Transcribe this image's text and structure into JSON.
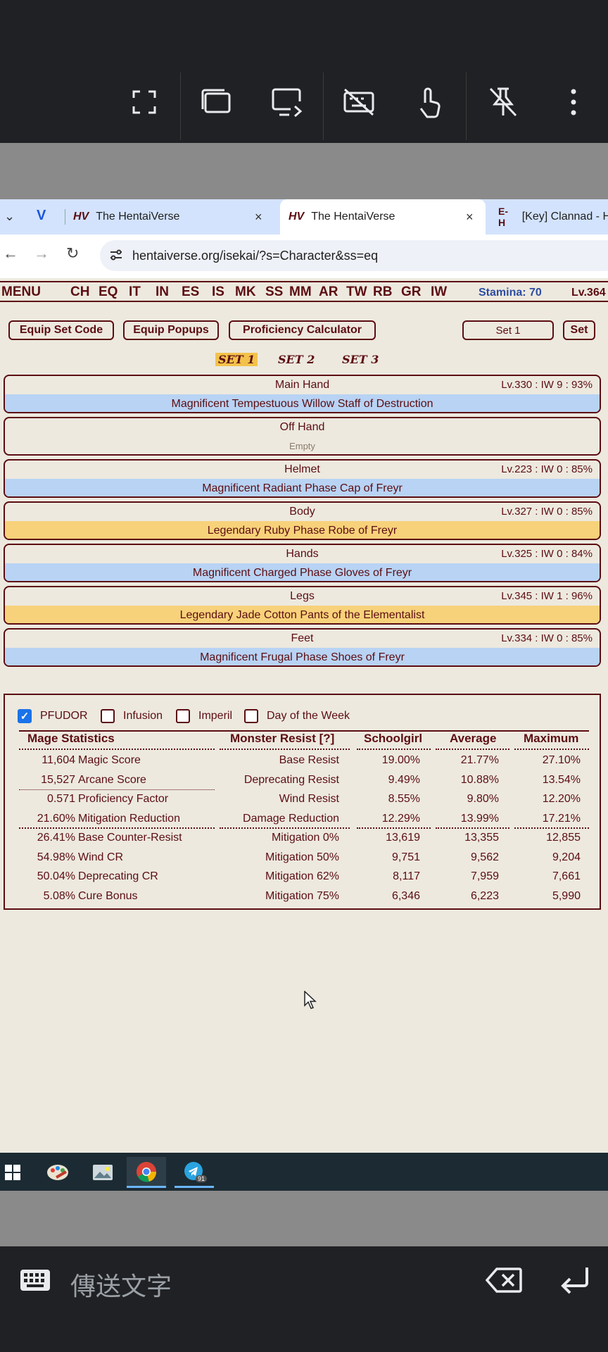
{
  "remote_toolbar": {
    "icons": [
      "fullscreen-icon",
      "window-icon",
      "display-switch-icon",
      "keyboard-off-icon",
      "touch-icon",
      "unpin-icon",
      "more-icon"
    ]
  },
  "browser": {
    "tabs": [
      {
        "title": "The HentaiVerse"
      },
      {
        "title": "The HentaiVerse"
      },
      {
        "title": "[Key] Clannad - H"
      }
    ],
    "tab_favicon_left": "HV",
    "tab_favicon_eh": "E-H",
    "url": "hentaiverse.org/isekai/?s=Character&ss=eq",
    "close_glyph": "×"
  },
  "hv": {
    "menu": [
      "MENU",
      "CH",
      "EQ",
      "IT",
      "IN",
      "ES",
      "IS",
      "MK",
      "SS",
      "MM",
      "AR",
      "TW",
      "RB",
      "GR",
      "IW"
    ],
    "stamina": "Stamina: 70",
    "level": "Lv.364",
    "buttons": {
      "equip_set_code": "Equip Set Code",
      "equip_popups": "Equip Popups",
      "proficiency_calculator": "Proficiency Calculator",
      "set_value": "Set 1",
      "set": "Set"
    },
    "set_tabs": [
      "SET 1",
      "SET 2",
      "SET 3"
    ],
    "slots": [
      {
        "name": "Main Hand",
        "info": "Lv.330  :  IW 9  :  93%",
        "item": "Magnificent Tempestuous Willow Staff of Destruction",
        "tier": "blue"
      },
      {
        "name": "Off Hand",
        "info": "",
        "item": "Empty",
        "tier": "empty"
      },
      {
        "name": "Helmet",
        "info": "Lv.223  :  IW 0  :  85%",
        "item": "Magnificent Radiant Phase Cap of Freyr",
        "tier": "blue"
      },
      {
        "name": "Body",
        "info": "Lv.327  :  IW 0  :  85%",
        "item": "Legendary Ruby Phase Robe of Freyr",
        "tier": "gold"
      },
      {
        "name": "Hands",
        "info": "Lv.325  :  IW 0  :  84%",
        "item": "Magnificent Charged Phase Gloves of Freyr",
        "tier": "blue"
      },
      {
        "name": "Legs",
        "info": "Lv.345  :  IW 1  :  96%",
        "item": "Legendary Jade Cotton Pants of the Elementalist",
        "tier": "gold"
      },
      {
        "name": "Feet",
        "info": "Lv.334  :  IW 0  :  85%",
        "item": "Magnificent Frugal Phase Shoes of Freyr",
        "tier": "blue"
      }
    ],
    "checkboxes": [
      {
        "label": "PFUDOR",
        "checked": true
      },
      {
        "label": "Infusion",
        "checked": false
      },
      {
        "label": "Imperil",
        "checked": false
      },
      {
        "label": "Day of the Week",
        "checked": false
      }
    ],
    "stats_headers": [
      "Mage Statistics",
      "Monster Resist [?]",
      "Schoolgirl",
      "Average",
      "Maximum"
    ],
    "stats_rows": [
      {
        "val": "11,604",
        "label": "Magic Score",
        "res": "Base Resist",
        "s": "19.00%",
        "a": "21.77%",
        "m": "27.10%"
      },
      {
        "val": "15,527",
        "label": "Arcane Score",
        "res": "Deprecating Resist",
        "s": "9.49%",
        "a": "10.88%",
        "m": "13.54%"
      },
      {
        "val": "0.571",
        "label": "Proficiency Factor",
        "res": "Wind Resist",
        "s": "8.55%",
        "a": "9.80%",
        "m": "12.20%"
      },
      {
        "val": "21.60%",
        "label": "Mitigation Reduction",
        "res": "Damage Reduction",
        "s": "12.29%",
        "a": "13.99%",
        "m": "17.21%"
      },
      {
        "val": "26.41%",
        "label": "Base Counter-Resist",
        "res": "Mitigation 0%",
        "s": "13,619",
        "a": "13,355",
        "m": "12,855"
      },
      {
        "val": "54.98%",
        "label": "Wind CR",
        "res": "Mitigation 50%",
        "s": "9,751",
        "a": "9,562",
        "m": "9,204"
      },
      {
        "val": "50.04%",
        "label": "Deprecating CR",
        "res": "Mitigation 62%",
        "s": "8,117",
        "a": "7,959",
        "m": "7,661"
      },
      {
        "val": "5.08%",
        "label": "Cure Bonus",
        "res": "Mitigation 75%",
        "s": "6,346",
        "a": "6,223",
        "m": "5,990"
      }
    ]
  },
  "taskbar": {
    "icons": [
      "windows-start-icon",
      "paint-app-icon",
      "picture-app-icon",
      "chrome-icon",
      "telegram-icon"
    ],
    "telegram_badge": "91"
  },
  "keyboard_bar": {
    "placeholder": "傳送文字"
  }
}
